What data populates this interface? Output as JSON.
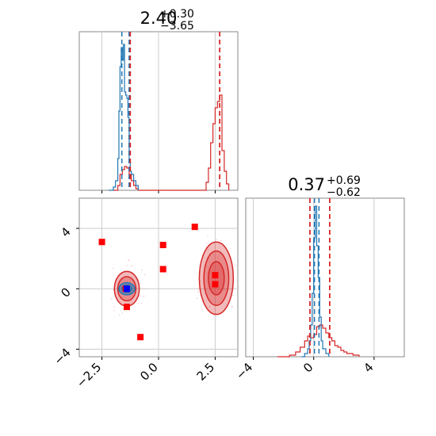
{
  "chart_data": {
    "type": "corner",
    "colors": {
      "red": "#d62728",
      "blue": "#1f77b4",
      "marker": "#ff0000",
      "point": "#0000ff",
      "grid": "#cccccc",
      "axes": "#888888"
    },
    "panels": {
      "param0_hist": {
        "title": {
          "value": "2.40",
          "plus": "+0.30",
          "minus": "−3.65"
        },
        "xlim": [
          -3.5,
          3.5
        ],
        "blue_quantiles": [
          -1.62,
          -1.3
        ],
        "red_quantiles": [
          -1.25,
          2.7
        ],
        "blue_series": {
          "x": [
            -2.2,
            -2.0,
            -1.9,
            -1.8,
            -1.75,
            -1.7,
            -1.65,
            -1.6,
            -1.55,
            -1.5,
            -1.45,
            -1.4,
            -1.35,
            -1.3,
            -1.25,
            -1.2,
            -1.1,
            -1.0,
            -0.9
          ],
          "y": [
            0.0,
            0.02,
            0.06,
            0.2,
            0.5,
            0.78,
            0.9,
            0.82,
            0.92,
            0.62,
            0.6,
            0.58,
            0.46,
            0.18,
            0.12,
            0.1,
            0.06,
            0.03,
            0.0
          ]
        },
        "red_series": {
          "x": [
            -2.0,
            -1.8,
            -1.7,
            -1.6,
            -1.5,
            -1.4,
            -1.3,
            -1.2,
            -1.1,
            -1.0,
            -0.9,
            2.0,
            2.1,
            2.2,
            2.3,
            2.4,
            2.5,
            2.6,
            2.7,
            2.8,
            2.9,
            3.0,
            3.1
          ],
          "y": [
            0.0,
            0.03,
            0.1,
            0.13,
            0.15,
            0.14,
            0.1,
            0.06,
            0.03,
            0.01,
            0.0,
            0.0,
            0.05,
            0.14,
            0.3,
            0.42,
            0.52,
            0.56,
            0.6,
            0.25,
            0.12,
            0.04,
            0.0
          ]
        },
        "xticks": [
          -2.5,
          0.0,
          2.5
        ]
      },
      "joint": {
        "xlim": [
          -3.5,
          3.5
        ],
        "ylim": [
          -4.5,
          6.0
        ],
        "xticks": [
          -2.5,
          0.0,
          2.5
        ],
        "yticks": [
          -4,
          0,
          4
        ],
        "xtick_labels": [
          "−2.5",
          "0.0",
          "2.5"
        ],
        "ytick_labels": [
          "−4",
          "0",
          "4"
        ],
        "red_squares": [
          {
            "x": -2.5,
            "y": 3.1
          },
          {
            "x": 0.2,
            "y": 2.9
          },
          {
            "x": 1.6,
            "y": 4.1
          },
          {
            "x": 0.2,
            "y": 1.3
          },
          {
            "x": -1.4,
            "y": -1.2
          },
          {
            "x": -0.8,
            "y": -3.2
          },
          {
            "x": 2.5,
            "y": 0.9
          },
          {
            "x": 2.5,
            "y": 0.3
          },
          {
            "x": -1.45,
            "y": 0.0
          }
        ],
        "blue_square": {
          "x": -1.4,
          "y": 0.0
        },
        "red_contours": [
          {
            "cx": -1.4,
            "cy": 0.0,
            "rx": 0.55,
            "ry": 1.15
          },
          {
            "cx": -1.4,
            "cy": 0.0,
            "rx": 0.4,
            "ry": 0.8
          },
          {
            "cx": 2.55,
            "cy": 0.7,
            "rx": 0.75,
            "ry": 2.4
          },
          {
            "cx": 2.55,
            "cy": 0.7,
            "rx": 0.55,
            "ry": 1.8
          },
          {
            "cx": 2.55,
            "cy": 0.7,
            "rx": 0.35,
            "ry": 1.1
          }
        ],
        "blue_contours": [
          {
            "cx": -1.4,
            "cy": 0.0,
            "rx": 0.35,
            "ry": 0.4
          },
          {
            "cx": -1.4,
            "cy": 0.0,
            "rx": 0.22,
            "ry": 0.25
          }
        ]
      },
      "param1_hist": {
        "title": {
          "value": "0.37",
          "plus": "+0.69",
          "minus": "−0.62"
        },
        "xlim": [
          -4.5,
          6.0
        ],
        "xticks": [
          -4,
          0,
          4
        ],
        "xtick_labels": [
          "−4",
          "0",
          "4"
        ],
        "blue_quantiles": [
          0.05,
          0.35
        ],
        "red_quantiles": [
          -0.25,
          1.06
        ],
        "blue_series": {
          "x": [
            -0.8,
            -0.6,
            -0.4,
            -0.3,
            -0.2,
            -0.1,
            0.0,
            0.1,
            0.2,
            0.3,
            0.4,
            0.5,
            0.6,
            0.8,
            1.0
          ],
          "y": [
            0.0,
            0.02,
            0.05,
            0.1,
            0.2,
            0.4,
            0.75,
            0.95,
            0.7,
            0.5,
            0.25,
            0.1,
            0.05,
            0.02,
            0.0
          ]
        },
        "red_series": {
          "x": [
            -2.4,
            -1.6,
            -1.2,
            -0.9,
            -0.6,
            -0.4,
            -0.2,
            0.0,
            0.2,
            0.4,
            0.6,
            0.8,
            1.0,
            1.2,
            1.4,
            1.6,
            1.8,
            2.0,
            2.2,
            2.6,
            3.0
          ],
          "y": [
            0.0,
            0.01,
            0.03,
            0.06,
            0.1,
            0.13,
            0.12,
            0.14,
            0.19,
            0.2,
            0.18,
            0.15,
            0.12,
            0.1,
            0.07,
            0.06,
            0.04,
            0.03,
            0.02,
            0.01,
            0.0
          ]
        }
      }
    }
  }
}
